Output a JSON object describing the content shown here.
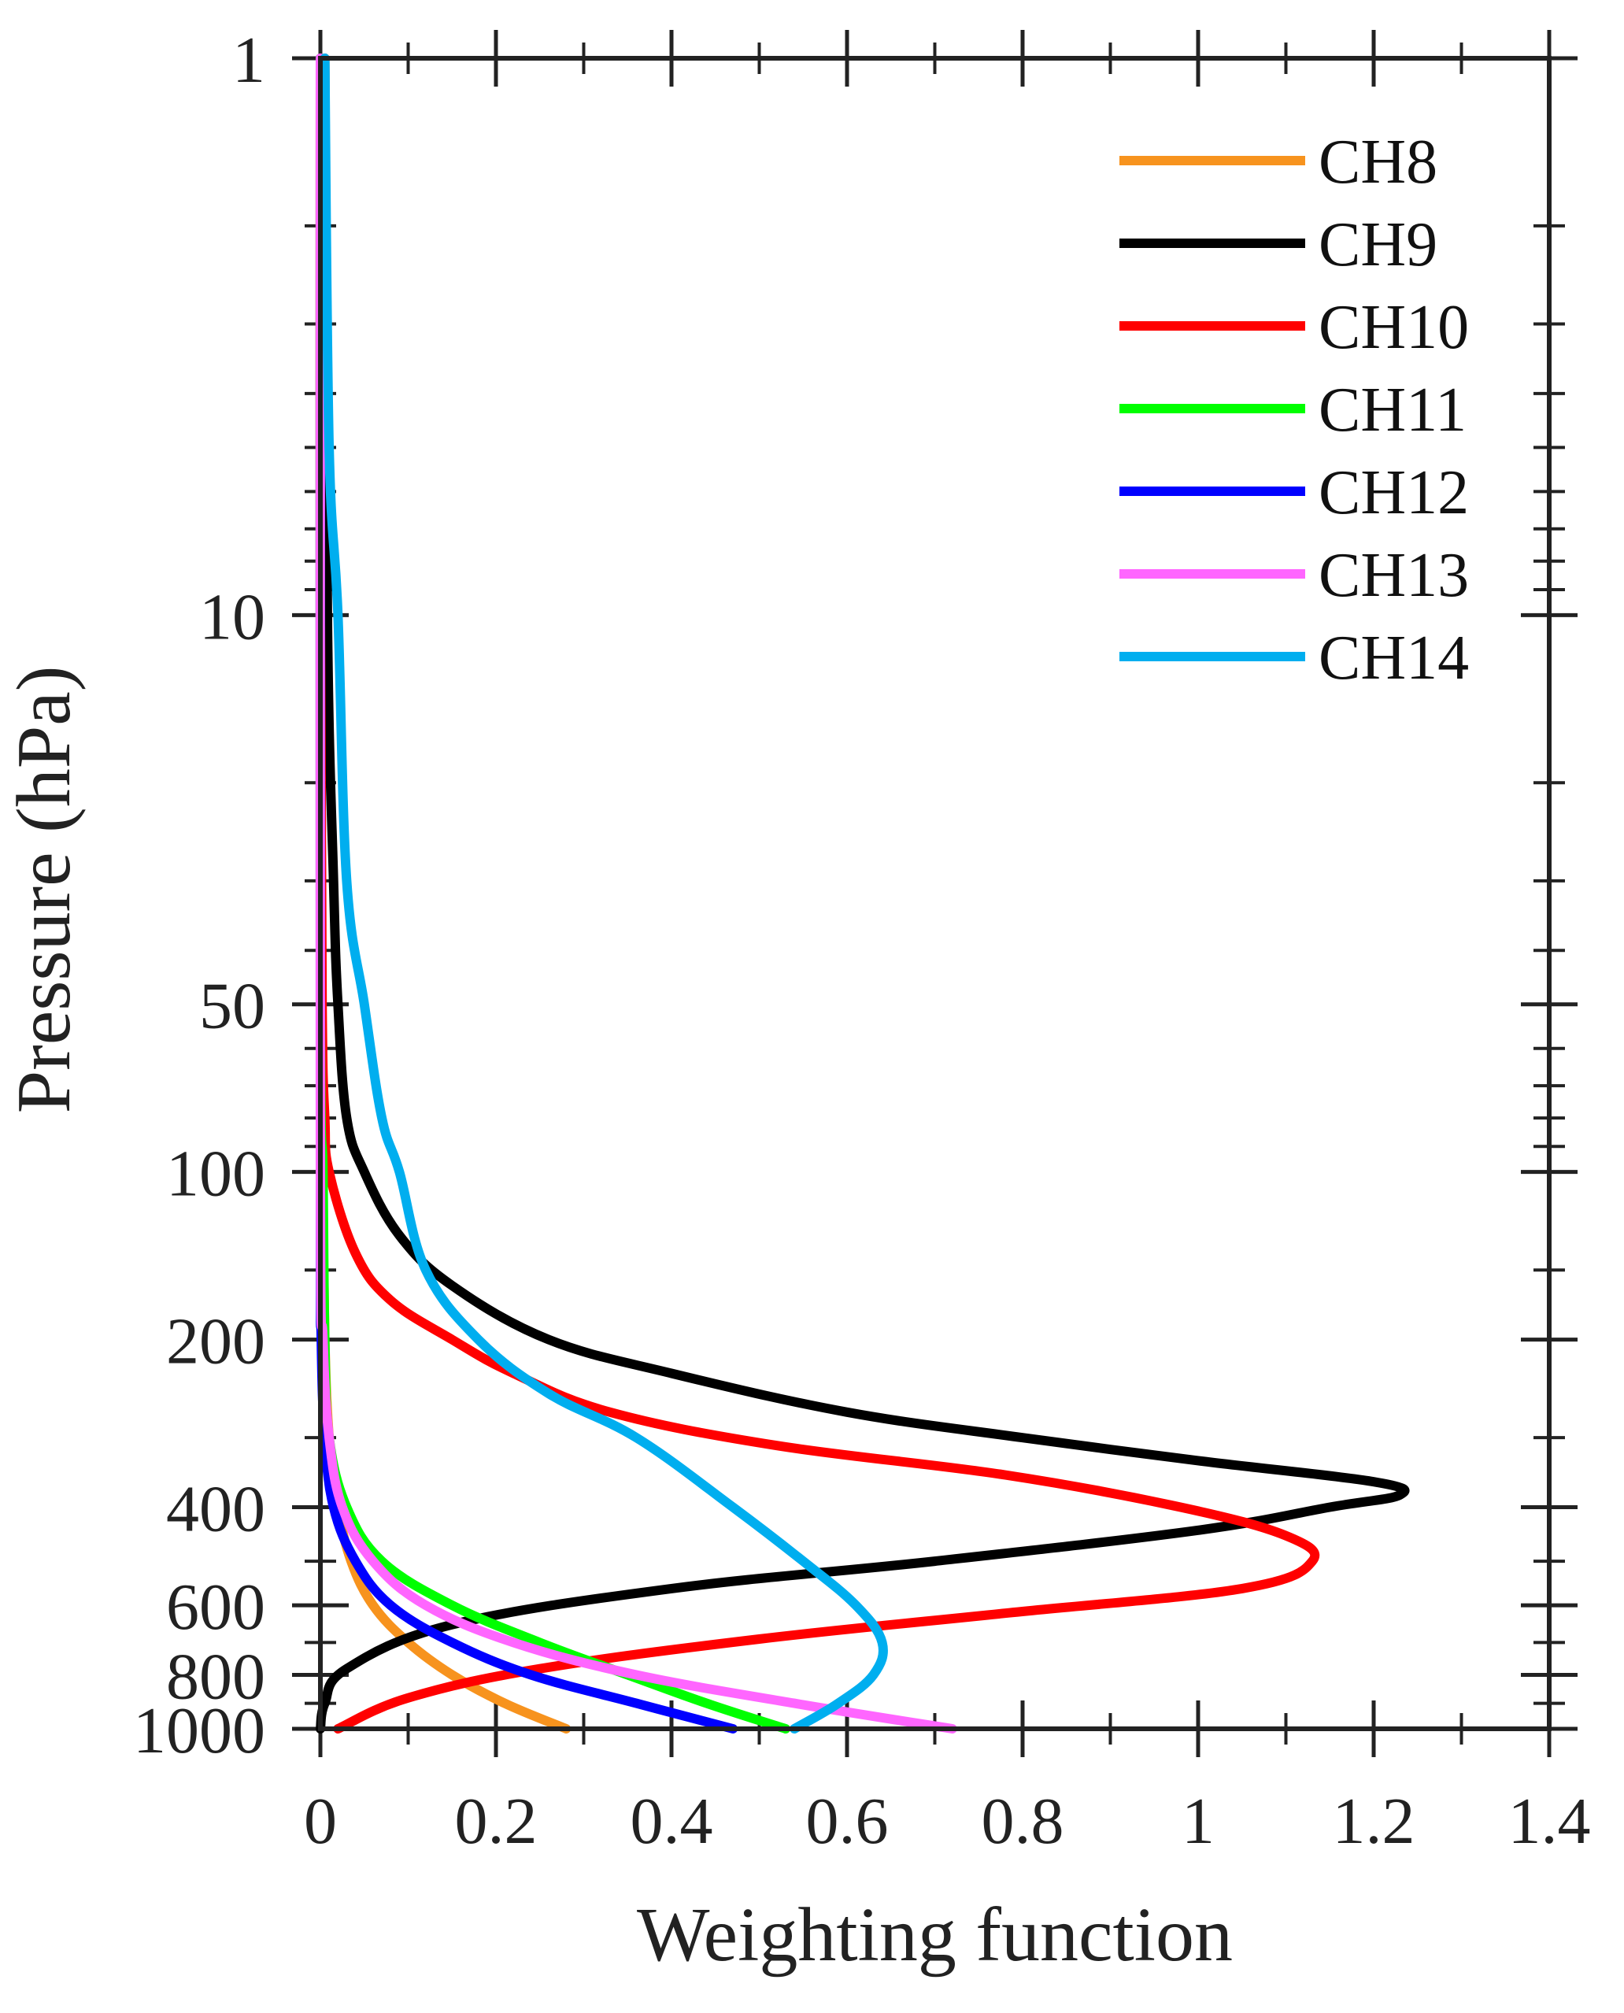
{
  "chart_data": {
    "type": "line",
    "title": "",
    "xlabel": "Weighting function",
    "ylabel": "Pressure (hPa)",
    "xlim": [
      0,
      1.4
    ],
    "ylim": [
      1000,
      1
    ],
    "yscale": "log",
    "y_reversed": true,
    "x_ticks": [
      0,
      0.2,
      0.4,
      0.6,
      0.8,
      1,
      1.2,
      1.4
    ],
    "x_tick_labels": [
      "0",
      "0.2",
      "0.4",
      "0.6",
      "0.8",
      "1",
      "1.2",
      "1.4"
    ],
    "y_ticks": [
      1,
      10,
      50,
      100,
      200,
      400,
      600,
      800,
      1000
    ],
    "y_tick_labels": [
      "1",
      "10",
      "50",
      "100",
      "200",
      "400",
      "600",
      "800",
      "1000"
    ],
    "y_minor_ticks": [
      2,
      3,
      4,
      5,
      6,
      7,
      8,
      9,
      20,
      30,
      40,
      60,
      70,
      80,
      90,
      150,
      300,
      500,
      700,
      900
    ],
    "x_minor_ticks": [
      0.1,
      0.3,
      0.5,
      0.7,
      0.9,
      1.1,
      1.3
    ],
    "grid": false,
    "legend_position": "top-right",
    "series": [
      {
        "name": "CH8",
        "color": "#F7931E",
        "points": [
          [
            0,
            1
          ],
          [
            0,
            10
          ],
          [
            0.001,
            50
          ],
          [
            0.002,
            100
          ],
          [
            0.005,
            200
          ],
          [
            0.01,
            300
          ],
          [
            0.02,
            400
          ],
          [
            0.035,
            500
          ],
          [
            0.06,
            600
          ],
          [
            0.1,
            700
          ],
          [
            0.15,
            800
          ],
          [
            0.21,
            900
          ],
          [
            0.28,
            1000
          ]
        ]
      },
      {
        "name": "CH9",
        "color": "#000000",
        "points": [
          [
            0.005,
            1
          ],
          [
            0.008,
            10
          ],
          [
            0.015,
            30
          ],
          [
            0.02,
            50
          ],
          [
            0.03,
            80
          ],
          [
            0.05,
            100
          ],
          [
            0.09,
            130
          ],
          [
            0.15,
            160
          ],
          [
            0.26,
            200
          ],
          [
            0.4,
            230
          ],
          [
            0.6,
            270
          ],
          [
            0.8,
            300
          ],
          [
            1.0,
            330
          ],
          [
            1.2,
            360
          ],
          [
            1.23,
            380
          ],
          [
            1.15,
            400
          ],
          [
            1.0,
            440
          ],
          [
            0.7,
            500
          ],
          [
            0.4,
            560
          ],
          [
            0.15,
            650
          ],
          [
            0.03,
            780
          ],
          [
            0.005,
            900
          ],
          [
            0,
            1000
          ]
        ]
      },
      {
        "name": "CH10",
        "color": "#FF0000",
        "points": [
          [
            0,
            1
          ],
          [
            0,
            10
          ],
          [
            0.002,
            50
          ],
          [
            0.005,
            80
          ],
          [
            0.01,
            100
          ],
          [
            0.04,
            140
          ],
          [
            0.08,
            170
          ],
          [
            0.15,
            200
          ],
          [
            0.22,
            230
          ],
          [
            0.33,
            270
          ],
          [
            0.52,
            310
          ],
          [
            0.78,
            350
          ],
          [
            0.98,
            400
          ],
          [
            1.1,
            450
          ],
          [
            1.13,
            500
          ],
          [
            1.05,
            560
          ],
          [
            0.78,
            620
          ],
          [
            0.5,
            690
          ],
          [
            0.25,
            780
          ],
          [
            0.1,
            880
          ],
          [
            0.02,
            1000
          ]
        ]
      },
      {
        "name": "CH11",
        "color": "#00FF00",
        "points": [
          [
            0,
            1
          ],
          [
            0,
            50
          ],
          [
            0.003,
            100
          ],
          [
            0.005,
            200
          ],
          [
            0.01,
            300
          ],
          [
            0.03,
            400
          ],
          [
            0.07,
            500
          ],
          [
            0.15,
            600
          ],
          [
            0.25,
            700
          ],
          [
            0.35,
            800
          ],
          [
            0.44,
            900
          ],
          [
            0.53,
            1000
          ]
        ]
      },
      {
        "name": "CH12",
        "color": "#0000FF",
        "points": [
          [
            0,
            1
          ],
          [
            0,
            100
          ],
          [
            0.001,
            200
          ],
          [
            0.005,
            300
          ],
          [
            0.015,
            400
          ],
          [
            0.04,
            500
          ],
          [
            0.08,
            600
          ],
          [
            0.15,
            700
          ],
          [
            0.24,
            800
          ],
          [
            0.36,
            900
          ],
          [
            0.47,
            1000
          ]
        ]
      },
      {
        "name": "CH13",
        "color": "#FF66FF",
        "points": [
          [
            0,
            1
          ],
          [
            0,
            100
          ],
          [
            0.003,
            200
          ],
          [
            0.01,
            300
          ],
          [
            0.025,
            400
          ],
          [
            0.06,
            500
          ],
          [
            0.12,
            600
          ],
          [
            0.22,
            700
          ],
          [
            0.36,
            800
          ],
          [
            0.54,
            900
          ],
          [
            0.72,
            1000
          ]
        ]
      },
      {
        "name": "CH14",
        "color": "#00AEEF",
        "points": [
          [
            0.005,
            1
          ],
          [
            0.01,
            5
          ],
          [
            0.02,
            10
          ],
          [
            0.03,
            30
          ],
          [
            0.05,
            50
          ],
          [
            0.07,
            80
          ],
          [
            0.09,
            100
          ],
          [
            0.12,
            150
          ],
          [
            0.18,
            200
          ],
          [
            0.26,
            250
          ],
          [
            0.36,
            300
          ],
          [
            0.47,
            400
          ],
          [
            0.55,
            500
          ],
          [
            0.61,
            600
          ],
          [
            0.64,
            700
          ],
          [
            0.63,
            800
          ],
          [
            0.59,
            900
          ],
          [
            0.54,
            1000
          ]
        ]
      }
    ]
  }
}
